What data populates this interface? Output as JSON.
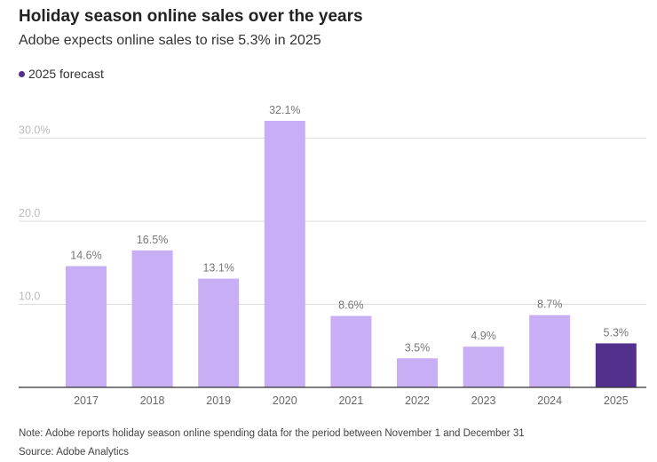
{
  "colors": {
    "bar": "#c8aef5",
    "forecast_bar": "#54308e",
    "grid": "#dddddd",
    "axis": "#333333",
    "tick_text": "#bbbbbb",
    "value_text": "#777777",
    "category_text": "#666666"
  },
  "chart_data": {
    "type": "bar",
    "title": "Holiday season online sales over the years",
    "subtitle": "Adobe expects online sales to rise 5.3% in 2025",
    "legend": {
      "label": "2025 forecast",
      "placement": "top-left"
    },
    "categories": [
      "2017",
      "2018",
      "2019",
      "2020",
      "2021",
      "2022",
      "2023",
      "2024",
      "2025"
    ],
    "values": [
      14.6,
      16.5,
      13.1,
      32.1,
      8.6,
      3.5,
      4.9,
      8.7,
      5.3
    ],
    "value_labels": [
      "14.6%",
      "16.5%",
      "13.1%",
      "32.1%",
      "8.6%",
      "3.5%",
      "4.9%",
      "8.7%",
      "5.3%"
    ],
    "forecast": [
      false,
      false,
      false,
      false,
      false,
      false,
      false,
      false,
      true
    ],
    "yticks": [
      10,
      20,
      30
    ],
    "ytick_labels": [
      "10.0",
      "20.0",
      "30.0%"
    ],
    "ylim": [
      0,
      32.1
    ],
    "xlabel": "",
    "ylabel": "",
    "grid": true
  },
  "footer": {
    "note": "Note: Adobe reports holiday season online spending data for the period between November 1 and December 31",
    "source": "Source: Adobe Analytics"
  }
}
